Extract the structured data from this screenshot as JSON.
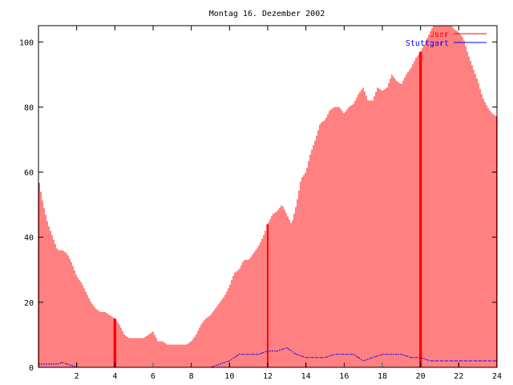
{
  "chart_data": {
    "type": "bar",
    "title": "Montag 16. Dezember 2002",
    "xlabel": "",
    "ylabel": "",
    "xlim": [
      0,
      24
    ],
    "ylim": [
      0,
      105
    ],
    "xticks": [
      2,
      4,
      6,
      8,
      10,
      12,
      14,
      16,
      18,
      20,
      22,
      24
    ],
    "yticks": [
      0,
      20,
      40,
      60,
      80,
      100
    ],
    "grid": false,
    "legend_position": "top-right",
    "series": [
      {
        "name": "User",
        "color": "#ff0000",
        "style": "impulses",
        "x": [
          0,
          0.25,
          0.5,
          0.75,
          1,
          1.25,
          1.5,
          1.75,
          2,
          2.25,
          2.5,
          2.75,
          3,
          3.25,
          3.5,
          3.75,
          4,
          4.25,
          4.5,
          4.75,
          5,
          5.25,
          5.5,
          5.75,
          6,
          6.25,
          6.5,
          6.75,
          7,
          7.25,
          7.5,
          7.75,
          8,
          8.25,
          8.5,
          8.75,
          9,
          9.25,
          9.5,
          9.75,
          10,
          10.25,
          10.5,
          10.75,
          11,
          11.25,
          11.5,
          11.75,
          12,
          12.25,
          12.5,
          12.75,
          13,
          13.25,
          13.5,
          13.75,
          14,
          14.25,
          14.5,
          14.75,
          15,
          15.25,
          15.5,
          15.75,
          16,
          16.25,
          16.5,
          16.75,
          17,
          17.25,
          17.5,
          17.75,
          18,
          18.25,
          18.5,
          18.75,
          19,
          19.25,
          19.5,
          19.75,
          20,
          20.25,
          20.5,
          20.75,
          21,
          21.25,
          21.5,
          21.75,
          22,
          22.25,
          22.5,
          22.75,
          23,
          23.25,
          23.5,
          23.75,
          24
        ],
        "values": [
          58,
          50,
          44,
          40,
          36,
          36,
          35,
          32,
          28,
          26,
          23,
          20,
          18,
          17,
          17,
          16,
          15,
          13,
          10,
          9,
          9,
          9,
          9,
          10,
          11,
          8,
          8,
          7,
          7,
          7,
          7,
          7,
          8,
          10,
          13,
          15,
          16,
          18,
          20,
          22,
          25,
          29,
          30,
          33,
          33,
          35,
          37,
          40,
          44,
          47,
          48,
          50,
          47,
          44,
          50,
          58,
          60,
          66,
          70,
          75,
          76,
          79,
          80,
          80,
          78,
          80,
          81,
          84,
          86,
          82,
          82,
          86,
          85,
          86,
          90,
          88,
          87,
          90,
          92,
          95,
          97,
          100,
          103,
          106,
          108,
          108,
          106,
          104,
          103,
          101,
          96,
          92,
          88,
          83,
          80,
          78,
          77
        ]
      },
      {
        "name": "Stuttgart",
        "color": "#0000ff",
        "style": "line",
        "x": [
          0,
          0.5,
          1,
          1.25,
          1.5,
          2,
          4,
          6,
          8,
          9,
          9.5,
          10,
          10.5,
          11,
          11.5,
          12,
          12.5,
          13,
          13.5,
          14,
          14.5,
          15,
          15.5,
          16,
          16.5,
          17,
          17.5,
          18,
          18.5,
          19,
          19.5,
          20,
          20.5,
          21,
          21.5,
          22,
          22.5,
          23,
          23.5,
          24
        ],
        "values": [
          1,
          1,
          1,
          1.5,
          1,
          0,
          0,
          0,
          0,
          0,
          1,
          2,
          4,
          4,
          4,
          5,
          5,
          6,
          4,
          3,
          3,
          3,
          4,
          4,
          4,
          2,
          3,
          4,
          4,
          4,
          3,
          3,
          2,
          2,
          2,
          2,
          2,
          2,
          2,
          2
        ]
      }
    ]
  }
}
